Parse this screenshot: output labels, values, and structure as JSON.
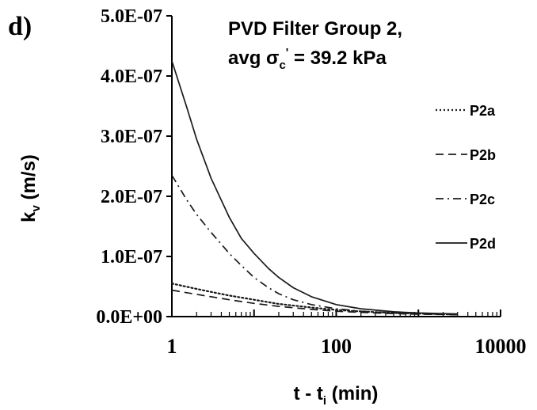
{
  "panel_label": "d)",
  "chart_data": {
    "type": "line",
    "title_line1": "PVD Filter Group 2,",
    "title_line2_prefix": "avg σ",
    "title_line2_sub": "c",
    "title_line2_sup": "'",
    "title_line2_suffix": " = 39.2 kPa",
    "ylabel_main": "k",
    "ylabel_sub": "v",
    "ylabel_unit": " (m/s)",
    "xlabel_main": "t - t",
    "xlabel_sub": "i",
    "xlabel_unit": " (min)",
    "x_scale": "log",
    "xlim": [
      1,
      10000
    ],
    "ylim": [
      0,
      5e-07
    ],
    "x_tick_labels": [
      "1",
      "100",
      "10000"
    ],
    "y_tick_labels": [
      "0.0E+00",
      "1.0E-07",
      "2.0E-07",
      "3.0E-07",
      "4.0E-07",
      "5.0E-07"
    ],
    "grid": false,
    "legend_placement": "right",
    "series": [
      {
        "name": "P2a",
        "style": "dotted",
        "x": [
          1,
          2,
          3,
          5,
          10,
          20,
          50,
          100,
          200,
          500,
          1000,
          2000,
          3000
        ],
        "y": [
          5.5e-08,
          4.6e-08,
          4.1e-08,
          3.5e-08,
          2.8e-08,
          2.1e-08,
          1.5e-08,
          1.1e-08,
          8.5e-09,
          6e-09,
          5e-09,
          4e-09,
          3.5e-09
        ]
      },
      {
        "name": "P2b",
        "style": "dashed",
        "x": [
          1,
          2,
          3,
          5,
          10,
          20,
          50,
          100,
          200,
          500,
          1000,
          2000,
          3000
        ],
        "y": [
          4.4e-08,
          3.7e-08,
          3.3e-08,
          2.8e-08,
          2.2e-08,
          1.7e-08,
          1.2e-08,
          9e-09,
          7e-09,
          5e-09,
          4e-09,
          3.5e-09,
          3e-09
        ]
      },
      {
        "name": "P2c",
        "style": "dashdot",
        "x": [
          1,
          1.5,
          2,
          3,
          5,
          7,
          10,
          15,
          20,
          30,
          50,
          100,
          200,
          500,
          1000,
          2000,
          3000
        ],
        "y": [
          2.35e-07,
          1.95e-07,
          1.7e-07,
          1.4e-07,
          1.05e-07,
          8.5e-08,
          6.5e-08,
          4.8e-08,
          3.8e-08,
          2.8e-08,
          2e-08,
          1.3e-08,
          9e-09,
          6e-09,
          5e-09,
          4e-09,
          3.5e-09
        ]
      },
      {
        "name": "P2d",
        "style": "solid",
        "x": [
          1,
          1.5,
          2,
          3,
          5,
          7,
          10,
          15,
          20,
          30,
          50,
          100,
          200,
          500,
          1000,
          2000,
          3000
        ],
        "y": [
          4.25e-07,
          3.5e-07,
          2.95e-07,
          2.3e-07,
          1.65e-07,
          1.3e-07,
          1.05e-07,
          8e-08,
          6.5e-08,
          4.8e-08,
          3.3e-08,
          2e-08,
          1.3e-08,
          8e-09,
          6e-09,
          5e-09,
          4.5e-09
        ]
      }
    ]
  }
}
